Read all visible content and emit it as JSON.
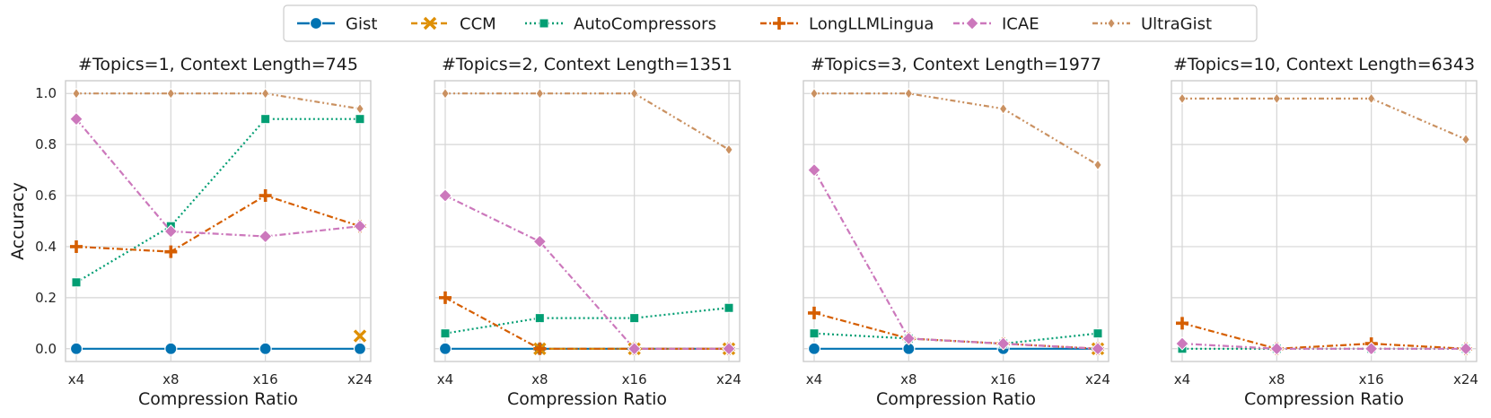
{
  "legend": {
    "placement": "top-center",
    "items": [
      {
        "name": "Gist",
        "color": "#0173b2",
        "marker": "circle",
        "dash": "solid"
      },
      {
        "name": "CCM",
        "color": "#de8f05",
        "marker": "x",
        "dash": "dashed"
      },
      {
        "name": "AutoCompressors",
        "color": "#029e73",
        "marker": "square",
        "dash": "dotted"
      },
      {
        "name": "LongLLMLingua",
        "color": "#d55e00",
        "marker": "plus",
        "dash": "dashdot"
      },
      {
        "name": "ICAE",
        "color": "#cc78bc",
        "marker": "diamond",
        "dash": "dashdot"
      },
      {
        "name": "UltraGist",
        "color": "#ca9161",
        "marker": "thin-diamond",
        "dash": "dashdotdot"
      }
    ]
  },
  "chart_data": [
    {
      "type": "line",
      "title": "#Topics=1, Context Length=745",
      "xlabel": "Compression Ratio",
      "ylabel": "Accuracy",
      "categories": [
        "x4",
        "x8",
        "x16",
        "x24"
      ],
      "ylim": [
        -0.05,
        1.05
      ],
      "yticks": [
        "0.0",
        "0.2",
        "0.4",
        "0.6",
        "0.8",
        "1.0"
      ],
      "grid": true,
      "series": [
        {
          "name": "Gist",
          "values": [
            0.0,
            0.0,
            0.0,
            0.0
          ]
        },
        {
          "name": "CCM",
          "values": [
            null,
            null,
            null,
            0.05
          ]
        },
        {
          "name": "AutoCompressors",
          "values": [
            0.26,
            0.48,
            0.9,
            0.9
          ]
        },
        {
          "name": "LongLLMLingua",
          "values": [
            0.4,
            0.38,
            0.6,
            0.48
          ]
        },
        {
          "name": "ICAE",
          "values": [
            0.9,
            0.46,
            0.44,
            0.48
          ]
        },
        {
          "name": "UltraGist",
          "values": [
            1.0,
            1.0,
            1.0,
            0.94
          ]
        }
      ]
    },
    {
      "type": "line",
      "title": "#Topics=2, Context Length=1351",
      "xlabel": "Compression Ratio",
      "ylabel": "",
      "categories": [
        "x4",
        "x8",
        "x16",
        "x24"
      ],
      "ylim": [
        -0.05,
        1.05
      ],
      "yticks": [],
      "grid": true,
      "series": [
        {
          "name": "Gist",
          "values": [
            0.0,
            0.0,
            0.0,
            0.0
          ]
        },
        {
          "name": "CCM",
          "values": [
            null,
            0.0,
            0.0,
            0.0
          ]
        },
        {
          "name": "AutoCompressors",
          "values": [
            0.06,
            0.12,
            0.12,
            0.16
          ]
        },
        {
          "name": "LongLLMLingua",
          "values": [
            0.2,
            0.0,
            0.0,
            0.0
          ]
        },
        {
          "name": "ICAE",
          "values": [
            0.6,
            0.42,
            0.0,
            0.0
          ]
        },
        {
          "name": "UltraGist",
          "values": [
            1.0,
            1.0,
            1.0,
            0.78
          ]
        }
      ]
    },
    {
      "type": "line",
      "title": "#Topics=3, Context Length=1977",
      "xlabel": "Compression Ratio",
      "ylabel": "",
      "categories": [
        "x4",
        "x8",
        "x16",
        "x24"
      ],
      "ylim": [
        -0.05,
        1.05
      ],
      "yticks": [],
      "grid": true,
      "series": [
        {
          "name": "Gist",
          "values": [
            0.0,
            0.0,
            0.0,
            0.0
          ]
        },
        {
          "name": "CCM",
          "values": [
            null,
            null,
            null,
            0.0
          ]
        },
        {
          "name": "AutoCompressors",
          "values": [
            0.06,
            0.04,
            0.02,
            0.06
          ]
        },
        {
          "name": "LongLLMLingua",
          "values": [
            0.14,
            0.04,
            0.02,
            0.0
          ]
        },
        {
          "name": "ICAE",
          "values": [
            0.7,
            0.04,
            0.02,
            0.0
          ]
        },
        {
          "name": "UltraGist",
          "values": [
            1.0,
            1.0,
            0.94,
            0.72
          ]
        }
      ]
    },
    {
      "type": "line",
      "title": "#Topics=10, Context Length=6343",
      "xlabel": "Compression Ratio",
      "ylabel": "",
      "categories": [
        "x4",
        "x8",
        "x16",
        "x24"
      ],
      "ylim": [
        -0.05,
        1.05
      ],
      "yticks": [],
      "grid": true,
      "series": [
        {
          "name": "Gist",
          "values": [
            null,
            null,
            null,
            null
          ]
        },
        {
          "name": "CCM",
          "values": [
            null,
            null,
            null,
            null
          ]
        },
        {
          "name": "AutoCompressors",
          "values": [
            0.0,
            0.0,
            0.0,
            0.0
          ]
        },
        {
          "name": "LongLLMLingua",
          "values": [
            0.1,
            0.0,
            0.02,
            0.0
          ]
        },
        {
          "name": "ICAE",
          "values": [
            0.02,
            0.0,
            0.0,
            0.0
          ]
        },
        {
          "name": "UltraGist",
          "values": [
            0.98,
            0.98,
            0.98,
            0.82
          ]
        }
      ]
    }
  ]
}
